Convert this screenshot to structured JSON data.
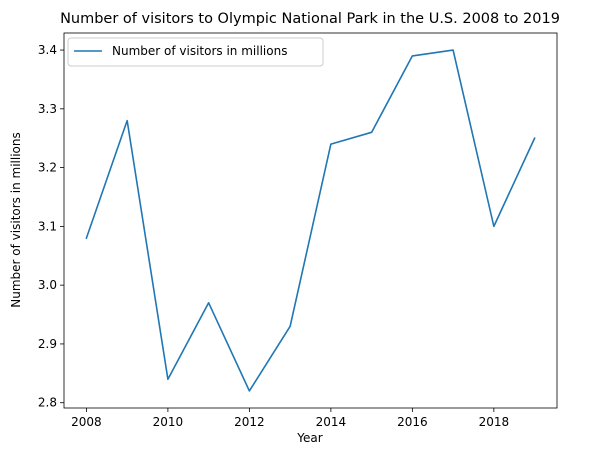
{
  "chart_data": {
    "type": "line",
    "title": "Number of visitors to Olympic National Park in the U.S. 2008 to 2019",
    "xlabel": "Year",
    "ylabel": "Number of visitors in millions",
    "x": [
      2008,
      2009,
      2010,
      2011,
      2012,
      2013,
      2014,
      2015,
      2016,
      2017,
      2018,
      2019
    ],
    "series": [
      {
        "name": "Number of visitors in millions",
        "values": [
          3.08,
          3.28,
          2.84,
          2.97,
          2.82,
          2.93,
          3.24,
          3.26,
          3.39,
          3.4,
          3.1,
          3.25
        ],
        "color": "#1f77b4"
      }
    ],
    "xlim": [
      2007.45,
      2019.55
    ],
    "ylim": [
      2.791,
      3.429
    ],
    "xticks": [
      2008,
      2010,
      2012,
      2014,
      2016,
      2018
    ],
    "yticks": [
      2.8,
      2.9,
      3.0,
      3.1,
      3.2,
      3.3,
      3.4
    ],
    "ytick_labels": [
      "2.8",
      "2.9",
      "3.0",
      "3.1",
      "3.2",
      "3.3",
      "3.4"
    ],
    "grid": false,
    "legend_position": "upper-left"
  }
}
